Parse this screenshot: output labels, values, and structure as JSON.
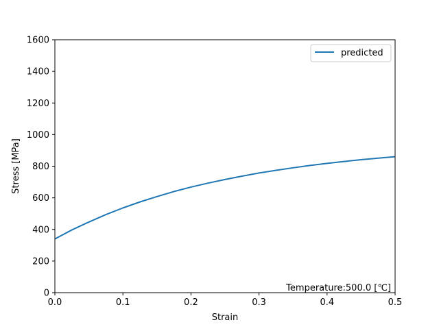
{
  "chart_data": {
    "type": "line",
    "title": "",
    "xlabel": "Strain",
    "ylabel": "Stress [MPa]",
    "xlim": [
      0.0,
      0.5
    ],
    "ylim": [
      0,
      1600
    ],
    "xticks": [
      0.0,
      0.1,
      0.2,
      0.3,
      0.4,
      0.5
    ],
    "xtick_labels": [
      "0.0",
      "0.1",
      "0.2",
      "0.3",
      "0.4",
      "0.5"
    ],
    "yticks": [
      0,
      200,
      400,
      600,
      800,
      1000,
      1200,
      1400,
      1600
    ],
    "ytick_labels": [
      "0",
      "200",
      "400",
      "600",
      "800",
      "1000",
      "1200",
      "1400",
      "1600"
    ],
    "grid": false,
    "legend": {
      "placement": "top-right",
      "entries": [
        "predicted"
      ]
    },
    "annotation": "Temperature:500.0 [℃]",
    "series": [
      {
        "name": "predicted",
        "color": "#1f77b4",
        "x": [
          0.0,
          0.025,
          0.05,
          0.075,
          0.1,
          0.125,
          0.15,
          0.175,
          0.2,
          0.225,
          0.25,
          0.275,
          0.3,
          0.325,
          0.35,
          0.375,
          0.4,
          0.425,
          0.45,
          0.475,
          0.5
        ],
        "y": [
          340,
          397,
          447,
          494,
          536,
          574,
          608,
          640,
          668,
          693,
          716,
          737,
          757,
          774,
          790,
          805,
          818,
          830,
          841,
          851,
          860
        ]
      }
    ]
  }
}
